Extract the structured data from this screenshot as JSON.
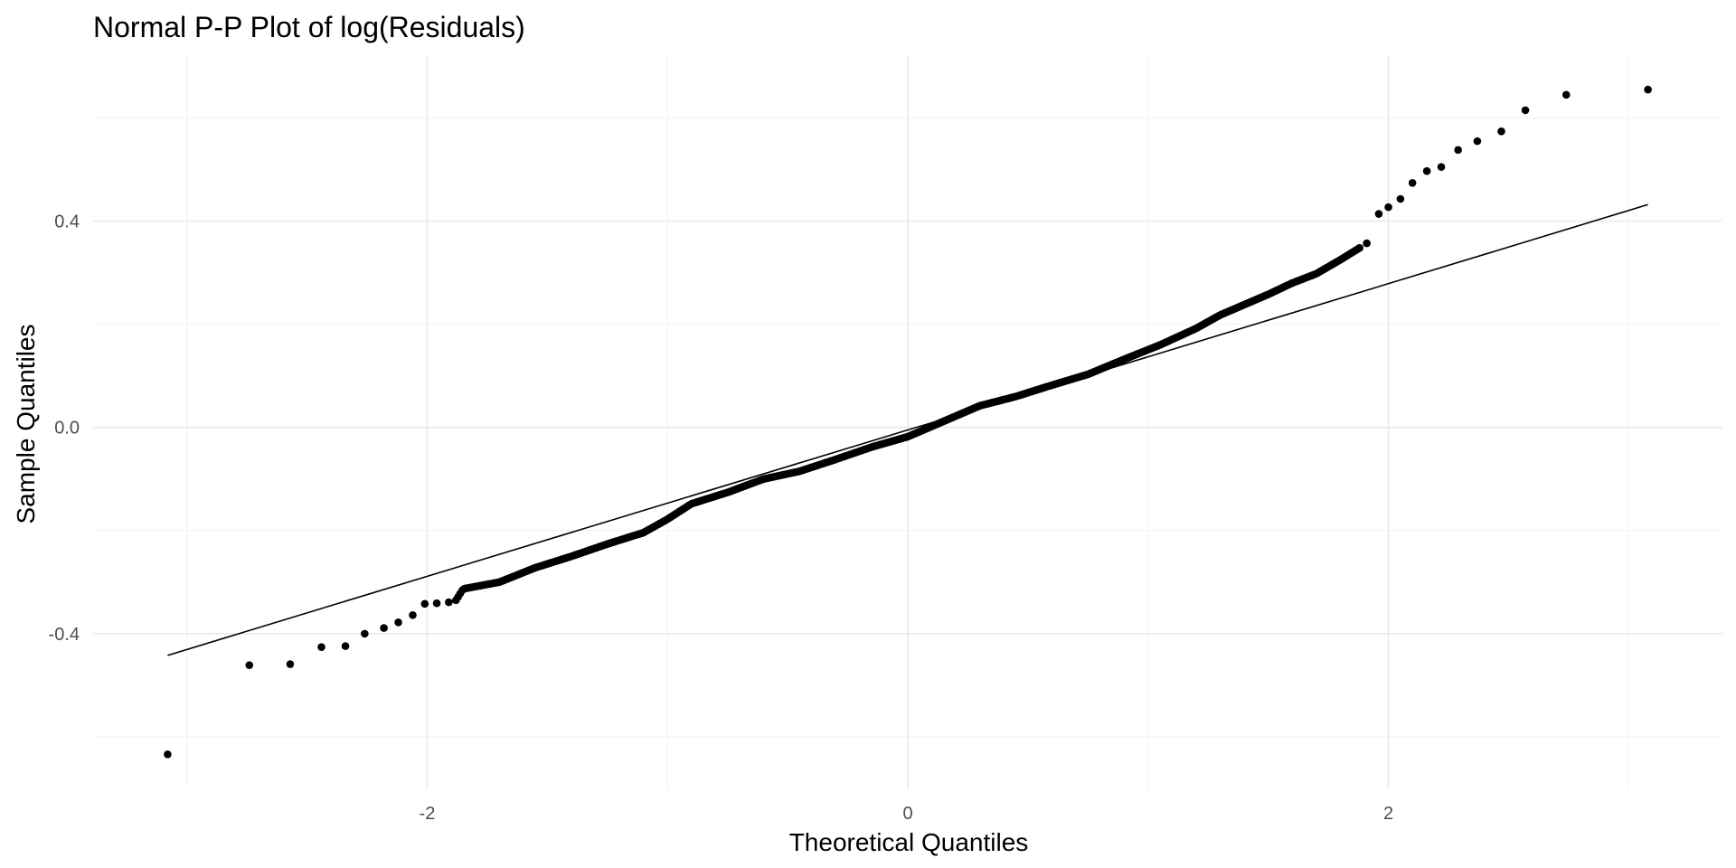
{
  "chart_data": {
    "type": "scatter",
    "title": "Normal P-P Plot of log(Residuals)",
    "xlabel": "Theoretical Quantiles",
    "ylabel": "Sample Quantiles",
    "xlim": [
      -3.39,
      3.39
    ],
    "ylim": [
      -0.7,
      0.72
    ],
    "x_ticks": [
      -2,
      0,
      2
    ],
    "x_tick_labels": [
      "-2",
      "0",
      "2"
    ],
    "y_ticks": [
      -0.4,
      0.0,
      0.4
    ],
    "y_tick_labels": [
      "-0.4",
      "0.0",
      "0.4"
    ],
    "grid": true,
    "legend": "none",
    "colors": {
      "points": "#000000",
      "line": "#000000",
      "grid_major": "#ebebeb",
      "grid_minor": "#f3f3f3",
      "tick_text": "#4d4d4d"
    },
    "reference_line": {
      "x": [
        -3.08,
        3.08
      ],
      "y": [
        -0.442,
        0.432
      ]
    },
    "tail_points": [
      [
        -3.08,
        -0.634
      ],
      [
        -2.74,
        -0.461
      ],
      [
        -2.57,
        -0.459
      ],
      [
        -2.44,
        -0.426
      ],
      [
        -2.34,
        -0.424
      ],
      [
        -2.26,
        -0.4
      ],
      [
        -2.18,
        -0.389
      ],
      [
        -2.12,
        -0.378
      ],
      [
        -2.06,
        -0.364
      ],
      [
        -2.01,
        -0.342
      ],
      [
        -1.96,
        -0.341
      ],
      [
        -1.91,
        -0.339
      ],
      [
        1.91,
        0.357
      ],
      [
        1.96,
        0.414
      ],
      [
        2.0,
        0.427
      ],
      [
        2.05,
        0.443
      ],
      [
        2.1,
        0.474
      ],
      [
        2.16,
        0.497
      ],
      [
        2.22,
        0.505
      ],
      [
        2.29,
        0.538
      ],
      [
        2.37,
        0.555
      ],
      [
        2.47,
        0.574
      ],
      [
        2.57,
        0.615
      ],
      [
        2.74,
        0.645
      ],
      [
        3.08,
        0.655
      ]
    ],
    "body_curve": {
      "n_points": 430,
      "x_range": [
        -1.88,
        1.88
      ],
      "knots": [
        [
          -1.88,
          -0.335
        ],
        [
          -1.85,
          -0.313
        ],
        [
          -1.7,
          -0.3
        ],
        [
          -1.55,
          -0.272
        ],
        [
          -1.4,
          -0.25
        ],
        [
          -1.25,
          -0.226
        ],
        [
          -1.1,
          -0.204
        ],
        [
          -1.0,
          -0.178
        ],
        [
          -0.9,
          -0.148
        ],
        [
          -0.75,
          -0.126
        ],
        [
          -0.6,
          -0.1
        ],
        [
          -0.45,
          -0.085
        ],
        [
          -0.3,
          -0.062
        ],
        [
          -0.15,
          -0.038
        ],
        [
          0.0,
          -0.018
        ],
        [
          0.15,
          0.012
        ],
        [
          0.3,
          0.042
        ],
        [
          0.45,
          0.06
        ],
        [
          0.6,
          0.082
        ],
        [
          0.75,
          0.103
        ],
        [
          0.9,
          0.132
        ],
        [
          1.05,
          0.16
        ],
        [
          1.2,
          0.192
        ],
        [
          1.3,
          0.218
        ],
        [
          1.4,
          0.238
        ],
        [
          1.5,
          0.258
        ],
        [
          1.6,
          0.28
        ],
        [
          1.7,
          0.298
        ],
        [
          1.8,
          0.325
        ],
        [
          1.88,
          0.348
        ]
      ]
    }
  }
}
